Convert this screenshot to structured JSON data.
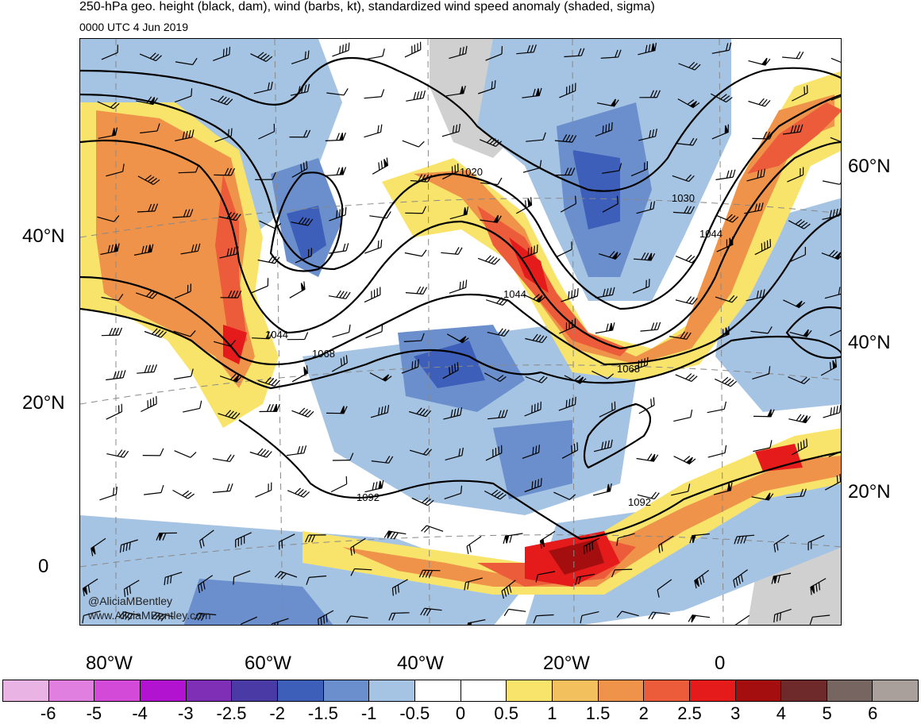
{
  "title": "250-hPa geo. height (black, dam), wind (barbs, kt), standardized wind speed anomaly (shaded, sigma)",
  "valid_time": "0000 UTC 4 Jun 2019",
  "credits": [
    "@AliciaMBentley",
    "www.AliciaMBentley.com"
  ],
  "lat_labels_left": [
    "40°N",
    "20°N",
    "0"
  ],
  "lat_labels_right": [
    "60°N",
    "40°N",
    "20°N"
  ],
  "lon_labels": [
    "80°W",
    "60°W",
    "40°W",
    "20°W",
    "0"
  ],
  "contour_labels": [
    "1020",
    "1030",
    "1044",
    "1044",
    "1044",
    "1068",
    "1068",
    "1092",
    "1092"
  ],
  "colorbar": {
    "ticks": [
      "-6",
      "-5",
      "-4",
      "-3",
      "-2.5",
      "-2",
      "-1.5",
      "-1",
      "-0.5",
      "0",
      "0.5",
      "1",
      "1.5",
      "2",
      "2.5",
      "3",
      "4",
      "5",
      "6"
    ],
    "colors": [
      "#e9b3e4",
      "#e07fe0",
      "#d44ad8",
      "#b213d1",
      "#7f2fb5",
      "#4a3aa6",
      "#3d5fba",
      "#6b8fcc",
      "#a5c4e3",
      "#ffffff",
      "#ffffff",
      "#f9e46b",
      "#f2c15d",
      "#f0934a",
      "#ec5c3a",
      "#e51b1b",
      "#a50e0e",
      "#6e2a2a",
      "#766560",
      "#a9a09c"
    ]
  },
  "colors": {
    "land_gray": "#c8c8c8",
    "blue_light": "#a5c4e3",
    "blue_mid": "#6b8fcc",
    "blue_dark": "#3d5fba",
    "yellow": "#f9e46b",
    "orange": "#f0934a",
    "red": "#e51b1b",
    "dark_red": "#a50e0e"
  }
}
